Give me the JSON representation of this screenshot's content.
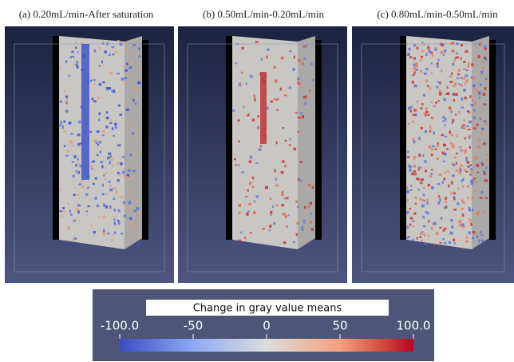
{
  "panels": [
    {
      "title": "(a) 0.20mL/min-After saturation"
    },
    {
      "title": "(b) 0.50mL/min-0.20mL/min"
    },
    {
      "title": "(c) 0.80mL/min-0.50mL/min"
    }
  ],
  "colorbar": {
    "title": "Change in gray value means",
    "ticks": [
      {
        "value": -100,
        "label": "-100.0"
      },
      -50,
      0,
      50,
      {
        "value": 100,
        "label": "100.0"
      }
    ]
  }
}
